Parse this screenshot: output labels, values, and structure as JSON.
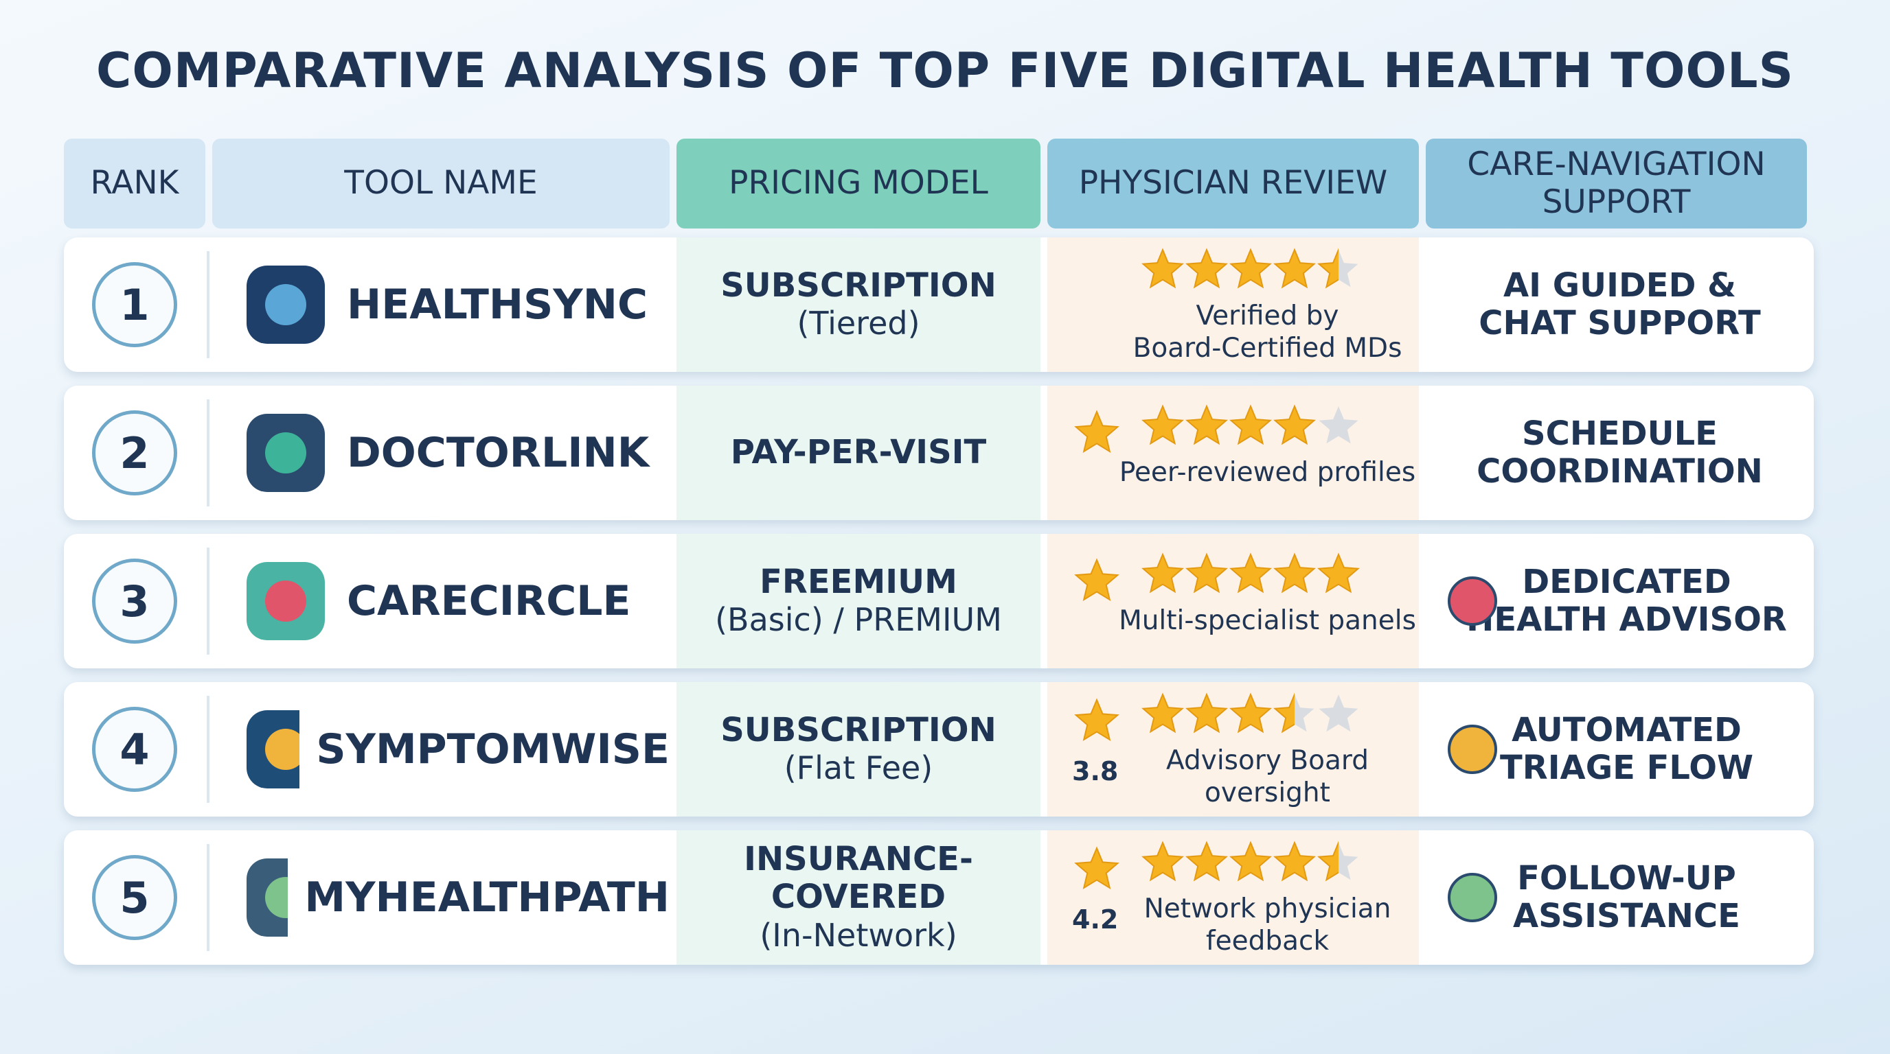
{
  "title": "COMPARATIVE ANALYSIS OF TOP FIVE DIGITAL HEALTH TOOLS",
  "table": {
    "headers": [
      "RANK",
      "TOOL NAME",
      "PRICING MODEL",
      "PHYSICIAN REVIEW",
      "CARE-NAVIGATION SUPPORT"
    ],
    "rows": [
      {
        "rank": "1",
        "tool": "HEALTHSYNC",
        "pricing": {
          "main": "SUBSCRIPTION",
          "note": "(Tiered)"
        },
        "stars": 4.5,
        "review": [
          "Verified by",
          "Board-Certified MDs"
        ],
        "support": [
          "AI GUIDED &",
          "CHAT SUPPORT"
        ]
      },
      {
        "rank": "2",
        "tool": "DOCTORLINK",
        "pricing": {
          "main": "PAY-PER-VISIT"
        },
        "stars": 4,
        "review": [
          "Peer-reviewed profiles"
        ],
        "support": [
          "SCHEDULE",
          "COORDINATION"
        ]
      },
      {
        "rank": "3",
        "tool": "CARECIRCLE",
        "pricing": {
          "main": "FREEMIUM",
          "note": "(Basic) / PREMIUM"
        },
        "stars": 5,
        "review": [
          "Multi-specialist panels"
        ],
        "support": [
          "DEDICATED",
          "HEALTH ADVISOR"
        ]
      },
      {
        "rank": "4",
        "tool": "SYMPTOMWISE",
        "pricing": {
          "main": "SUBSCRIPTION",
          "note": "(Flat Fee)"
        },
        "stars": 3.5,
        "score": 3.8,
        "review": [
          "Advisory Board",
          "oversight"
        ],
        "support": [
          "AUTOMATED",
          "TRIAGE FLOW"
        ]
      },
      {
        "rank": "5",
        "tool": "MYHEALTHPATH",
        "pricing": {
          "main": "INSURANCE-COVERED",
          "note": "(In-Network)"
        },
        "stars": 4.5,
        "score": 4.2,
        "review": [
          "Network physician",
          "feedback"
        ],
        "support": [
          "FOLLOW-UP",
          "ASSISTANCE"
        ]
      }
    ]
  }
}
